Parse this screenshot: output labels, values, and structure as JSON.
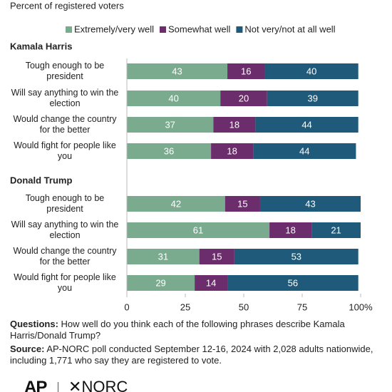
{
  "chart_data": {
    "type": "bar",
    "orientation": "horizontal",
    "stacked": true,
    "subtitle": "Percent of registered voters",
    "series": [
      {
        "name": "Extremely/very well",
        "color": "#7aab8f"
      },
      {
        "name": "Somewhat well",
        "color": "#6b2d6b"
      },
      {
        "name": "Not very/not at all well",
        "color": "#1f5a7a"
      }
    ],
    "groups": [
      {
        "name": "Kamala Harris",
        "categories": [
          "Tough enough to be president",
          "Will say anything to win the election",
          "Would change the country for the better",
          "Would fight for people like you"
        ],
        "values": [
          [
            43,
            40,
            37,
            36
          ],
          [
            16,
            20,
            18,
            18
          ],
          [
            40,
            39,
            44,
            44
          ]
        ]
      },
      {
        "name": "Donald Trump",
        "categories": [
          "Tough enough to be president",
          "Will say anything to win the election",
          "Would change the country for the better",
          "Would fight for people like you"
        ],
        "values": [
          [
            42,
            61,
            31,
            29
          ],
          [
            15,
            18,
            15,
            14
          ],
          [
            43,
            21,
            53,
            56
          ]
        ]
      }
    ],
    "xlim": [
      0,
      100
    ],
    "xticks": [
      0,
      25,
      50,
      75,
      {
        "value": 100,
        "label": "100%"
      }
    ],
    "grid": false,
    "legend": "top",
    "questions_label": "Questions:",
    "questions": "How well do you think each of the following phrases describe Kamala Harris/Donald Trump?",
    "source_label": "Source:",
    "source": "AP-NORC poll conducted September 12-16, 2024 with 2,028 adults nationwide, including 1,771 who say they are registered to vote.",
    "logo_left": "AP",
    "logo_right": "NORC"
  }
}
